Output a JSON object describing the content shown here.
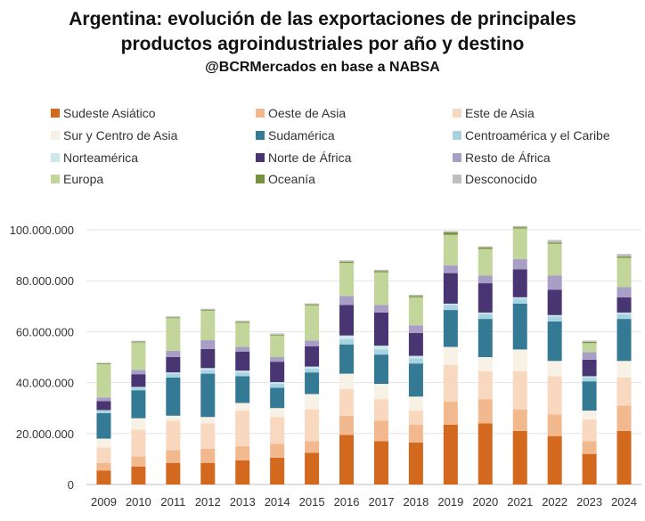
{
  "title_line1": "Argentina: evolución de las exportaciones de principales",
  "title_line2": "productos agroindustriales por año y destino",
  "subtitle": "@BCRMercados en base a NABSA",
  "chart_data": {
    "type": "bar",
    "stacked": true,
    "title": "Argentina: evolución de las exportaciones de principales productos agroindustriales por año y destino",
    "subtitle": "@BCRMercados en base a NABSA",
    "xlabel": "",
    "ylabel": "",
    "ylim": [
      0,
      100000000
    ],
    "yticks": [
      0,
      20000000,
      40000000,
      60000000,
      80000000,
      100000000
    ],
    "ytick_labels": [
      "0",
      "20.000.000",
      "40.000.000",
      "60.000.000",
      "80.000.000",
      "100.000.000"
    ],
    "grid": true,
    "legend_position": "top",
    "categories": [
      "2009",
      "2010",
      "2011",
      "2012",
      "2013",
      "2014",
      "2015",
      "2016",
      "2017",
      "2018",
      "2019",
      "2020",
      "2021",
      "2022",
      "2023",
      "2024"
    ],
    "series": [
      {
        "name": "Sudeste Asiático",
        "color": "#d2691e",
        "values": [
          5500000,
          7000000,
          8500000,
          8500000,
          9500000,
          10500000,
          12500000,
          19500000,
          17000000,
          16500000,
          23500000,
          24000000,
          21000000,
          19000000,
          12000000,
          21000000
        ]
      },
      {
        "name": "Oeste de Asia",
        "color": "#f2b98e",
        "values": [
          3000000,
          4000000,
          5000000,
          5500000,
          5500000,
          5500000,
          4500000,
          7500000,
          8000000,
          7000000,
          9000000,
          9500000,
          8500000,
          8500000,
          5000000,
          10000000
        ]
      },
      {
        "name": "Este de Asia",
        "color": "#f9d8c0",
        "values": [
          6000000,
          10500000,
          11500000,
          10000000,
          14000000,
          10500000,
          12500000,
          10500000,
          8500000,
          5500000,
          14500000,
          11000000,
          15000000,
          15000000,
          8500000,
          11000000
        ]
      },
      {
        "name": "Sur y Centro de Asia",
        "color": "#f8f1e6",
        "values": [
          3500000,
          4500000,
          2000000,
          2500000,
          3000000,
          3500000,
          6000000,
          6000000,
          6000000,
          5500000,
          7000000,
          5500000,
          8500000,
          6000000,
          3500000,
          6500000
        ]
      },
      {
        "name": "Sudamérica",
        "color": "#357a95",
        "values": [
          10000000,
          11000000,
          15000000,
          17000000,
          10500000,
          8000000,
          8500000,
          11500000,
          11500000,
          13000000,
          14500000,
          15000000,
          18000000,
          15500000,
          11500000,
          16500000
        ]
      },
      {
        "name": "Centroamérica y el Caribe",
        "color": "#a8d3e3",
        "values": [
          1000000,
          1000000,
          1500000,
          1500000,
          1500000,
          1500000,
          1500000,
          2000000,
          2000000,
          2000000,
          2000000,
          2000000,
          2000000,
          2000000,
          1500000,
          2000000
        ]
      },
      {
        "name": "Norteamérica",
        "color": "#cbe9ec",
        "values": [
          200000,
          300000,
          500000,
          700000,
          700000,
          700000,
          800000,
          1500000,
          1500000,
          1000000,
          500000,
          500000,
          500000,
          500000,
          500000,
          500000
        ]
      },
      {
        "name": "Norte de África",
        "color": "#4a3573",
        "values": [
          3500000,
          5000000,
          6000000,
          7500000,
          7500000,
          8000000,
          8000000,
          12000000,
          13000000,
          9000000,
          12000000,
          11500000,
          11000000,
          10000000,
          6500000,
          6000000
        ]
      },
      {
        "name": "Resto de África",
        "color": "#a89ec6",
        "values": [
          1500000,
          1700000,
          2500000,
          3500000,
          1800000,
          1800000,
          2200000,
          3500000,
          3000000,
          3000000,
          3000000,
          3000000,
          4000000,
          5500000,
          3000000,
          4000000
        ]
      },
      {
        "name": "Europa",
        "color": "#c2d69b",
        "values": [
          13000000,
          10800000,
          12800000,
          11500000,
          9500000,
          8500000,
          13800000,
          13000000,
          12800000,
          11000000,
          12000000,
          10500000,
          12000000,
          12500000,
          3500000,
          11500000
        ]
      },
      {
        "name": "Oceanía",
        "color": "#76923c",
        "values": [
          300000,
          300000,
          300000,
          300000,
          300000,
          300000,
          300000,
          500000,
          500000,
          500000,
          1000000,
          500000,
          500000,
          500000,
          500000,
          500000
        ]
      },
      {
        "name": "Desconocido",
        "color": "#bfbfbf",
        "values": [
          300000,
          300000,
          400000,
          500000,
          500000,
          500000,
          500000,
          500000,
          500000,
          500000,
          500000,
          500000,
          500000,
          1000000,
          500000,
          1000000
        ]
      }
    ]
  }
}
